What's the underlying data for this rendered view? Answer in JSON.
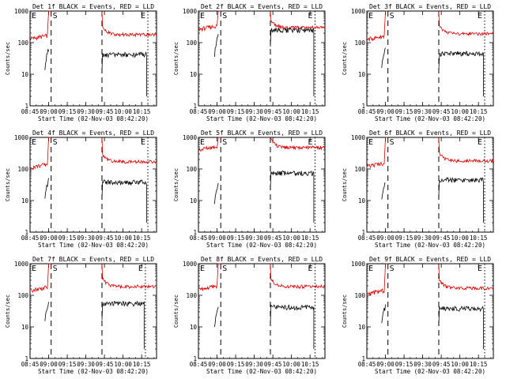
{
  "figure": {
    "x_axis_title": "Start Time (02-Nov-03 08:42:20)",
    "y_axis_title": "Counts/sec",
    "colors": {
      "events": "#000000",
      "lld": "#d40000",
      "axes": "#000000",
      "background": "#ffffff"
    },
    "markers": {
      "start": "E",
      "second": "S",
      "end": "E"
    }
  },
  "chart_data": [
    {
      "type": "line",
      "title": "Det 1f BLACK = Events, RED = LLD",
      "x_range_min": [
        45,
        147
      ],
      "y_log_range": [
        1,
        1000
      ],
      "x_ticks": [
        "08:45",
        "09:00",
        "09:15",
        "09:30",
        "09:45",
        "10:00",
        "10:15"
      ],
      "y_ticks": [
        "1",
        "10",
        "100",
        "1000"
      ],
      "dashed_lines_min": [
        62,
        103
      ],
      "dotted_line_min": 140,
      "series": [
        {
          "name": "Events",
          "level_before": 60,
          "level_after": 42
        },
        {
          "name": "LLD",
          "level_before": 130,
          "level_after": 180
        }
      ]
    },
    {
      "type": "line",
      "title": "Det 2f BLACK = Events, RED = LLD",
      "x_range_min": [
        45,
        147
      ],
      "y_log_range": [
        1,
        1000
      ],
      "x_ticks": [
        "08:45",
        "09:00",
        "09:15",
        "09:30",
        "09:45",
        "10:00",
        "10:15"
      ],
      "y_ticks": [
        "1",
        "10",
        "100",
        "1000"
      ],
      "dashed_lines_min": [
        63,
        103
      ],
      "dotted_line_min": 139,
      "series": [
        {
          "name": "Events",
          "level_before": 170,
          "level_after": 250
        },
        {
          "name": "LLD",
          "level_before": 260,
          "level_after": 300
        }
      ]
    },
    {
      "type": "line",
      "title": "Det 3f BLACK = Events, RED = LLD",
      "x_range_min": [
        45,
        147
      ],
      "y_log_range": [
        1,
        1000
      ],
      "x_ticks": [
        "08:45",
        "09:00",
        "09:15",
        "09:30",
        "09:45",
        "10:00",
        "10:15"
      ],
      "y_ticks": [
        "1",
        "10",
        "100",
        "1000"
      ],
      "dashed_lines_min": [
        62,
        103
      ],
      "dotted_line_min": 140,
      "series": [
        {
          "name": "Events",
          "level_before": 60,
          "level_after": 45
        },
        {
          "name": "LLD",
          "level_before": 125,
          "level_after": 190
        }
      ]
    },
    {
      "type": "line",
      "title": "Det 4f BLACK = Events, RED = LLD",
      "x_range_min": [
        45,
        147
      ],
      "y_log_range": [
        1,
        1000
      ],
      "x_ticks": [
        "08:45",
        "09:00",
        "09:15",
        "09:30",
        "09:45",
        "10:00",
        "10:15"
      ],
      "y_ticks": [
        "1",
        "10",
        "100",
        "1000"
      ],
      "dashed_lines_min": [
        62,
        103
      ],
      "dotted_line_min": 140,
      "series": [
        {
          "name": "Events",
          "level_before": 45,
          "level_after": 38
        },
        {
          "name": "LLD",
          "level_before": 110,
          "level_after": 170
        }
      ]
    },
    {
      "type": "line",
      "title": "Det 5f BLACK = Events, RED = LLD",
      "x_range_min": [
        45,
        147
      ],
      "y_log_range": [
        1,
        1000
      ],
      "x_ticks": [
        "08:45",
        "09:00",
        "09:15",
        "09:30",
        "09:45",
        "10:00",
        "10:15"
      ],
      "y_ticks": [
        "1",
        "10",
        "100",
        "1000"
      ],
      "dashed_lines_min": [
        63,
        103
      ],
      "dotted_line_min": 139,
      "series": [
        {
          "name": "Events",
          "level_before": 30,
          "level_after": 75
        },
        {
          "name": "LLD",
          "level_before": 400,
          "level_after": 480
        }
      ]
    },
    {
      "type": "line",
      "title": "Det 6f BLACK = Events, RED = LLD",
      "x_range_min": [
        45,
        147
      ],
      "y_log_range": [
        1,
        1000
      ],
      "x_ticks": [
        "08:45",
        "09:00",
        "09:15",
        "09:30",
        "09:45",
        "10:00",
        "10:15"
      ],
      "y_ticks": [
        "1",
        "10",
        "100",
        "1000"
      ],
      "dashed_lines_min": [
        62,
        103
      ],
      "dotted_line_min": 140,
      "series": [
        {
          "name": "Events",
          "level_before": 40,
          "level_after": 45
        },
        {
          "name": "LLD",
          "level_before": 120,
          "level_after": 180
        }
      ]
    },
    {
      "type": "line",
      "title": "Det 7f BLACK = Events, RED = LLD",
      "x_range_min": [
        45,
        147
      ],
      "y_log_range": [
        1,
        1000
      ],
      "x_ticks": [
        "08:45",
        "09:00",
        "09:15",
        "09:30",
        "09:45",
        "10:00",
        "10:15"
      ],
      "y_ticks": [
        "1",
        "10",
        "100",
        "1000"
      ],
      "dashed_lines_min": [
        62,
        103
      ],
      "dotted_line_min": 138,
      "series": [
        {
          "name": "Events",
          "level_before": 60,
          "level_after": 55
        },
        {
          "name": "LLD",
          "level_before": 140,
          "level_after": 190
        }
      ]
    },
    {
      "type": "line",
      "title": "Det 8f BLACK = Events, RED = LLD",
      "x_range_min": [
        45,
        147
      ],
      "y_log_range": [
        1,
        1000
      ],
      "x_ticks": [
        "08:45",
        "09:00",
        "09:15",
        "09:30",
        "09:45",
        "10:00",
        "10:15"
      ],
      "y_ticks": [
        "1",
        "10",
        "100",
        "1000"
      ],
      "dashed_lines_min": [
        63,
        103
      ],
      "dotted_line_min": 139,
      "series": [
        {
          "name": "Events",
          "level_before": 40,
          "level_after": 42
        },
        {
          "name": "LLD",
          "level_before": 150,
          "level_after": 190
        }
      ]
    },
    {
      "type": "line",
      "title": "Det 9f BLACK = Events, RED = LLD",
      "x_range_min": [
        45,
        147
      ],
      "y_log_range": [
        1,
        1000
      ],
      "x_ticks": [
        "08:45",
        "09:00",
        "09:15",
        "09:30",
        "09:45",
        "10:00",
        "10:15"
      ],
      "y_ticks": [
        "1",
        "10",
        "100",
        "1000"
      ],
      "dashed_lines_min": [
        62,
        103
      ],
      "dotted_line_min": 140,
      "series": [
        {
          "name": "Events",
          "level_before": 45,
          "level_after": 38
        },
        {
          "name": "LLD",
          "level_before": 110,
          "level_after": 170
        }
      ]
    }
  ]
}
